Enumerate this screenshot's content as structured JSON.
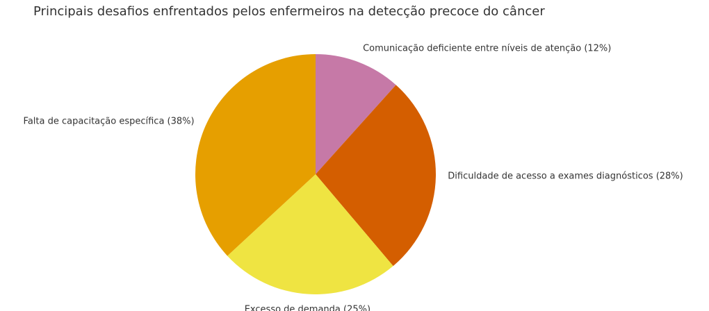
{
  "chart_data": {
    "type": "pie",
    "title": "Principais desafios enfrentados pelos enfermeiros na detecção precoce do câncer",
    "slices": [
      {
        "label": "Comunicação deficiente entre níveis de atenção (12%)",
        "value": 12,
        "color": "#c679a7"
      },
      {
        "label": "Dificuldade de acesso a exames diagnósticos (28%)",
        "value": 28,
        "color": "#d45e00"
      },
      {
        "label": "Excesso de demanda (25%)",
        "value": 25,
        "color": "#efe442"
      },
      {
        "label": "Falta de capacitação específica (38%)",
        "value": 38,
        "color": "#e69f00"
      }
    ],
    "start": "top",
    "direction": "clockwise",
    "legend": "none"
  }
}
